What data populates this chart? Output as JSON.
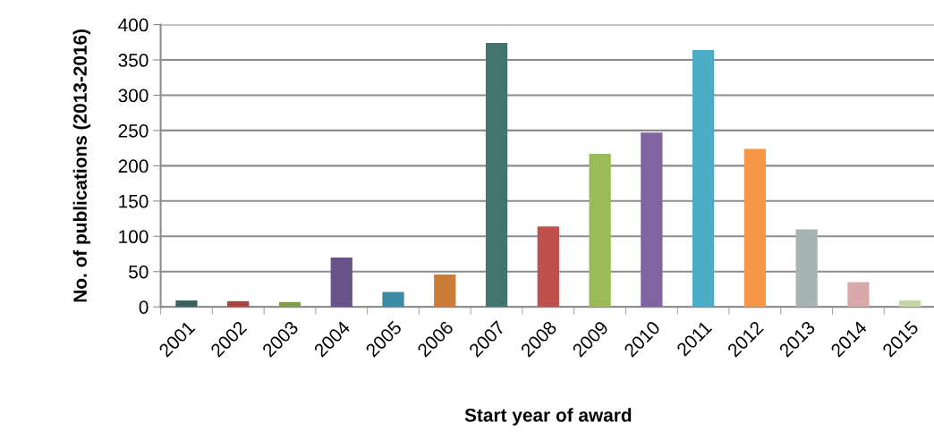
{
  "chart_data": {
    "type": "bar",
    "xlabel": "Start year of award",
    "ylabel": "No. of publications (2013-2016)",
    "categories": [
      "2001",
      "2002",
      "2003",
      "2004",
      "2005",
      "2006",
      "2007",
      "2008",
      "2009",
      "2010",
      "2011",
      "2012",
      "2013",
      "2014",
      "2015"
    ],
    "values": [
      9,
      8,
      7,
      70,
      21,
      46,
      374,
      114,
      217,
      247,
      364,
      224,
      110,
      35,
      9
    ],
    "colors": [
      "#376260",
      "#a94442",
      "#7f9c47",
      "#68528a",
      "#3a8ba3",
      "#cc7b39",
      "#437570",
      "#c0504d",
      "#9bbb59",
      "#8064a2",
      "#4bacc6",
      "#f79646",
      "#a7b4b4",
      "#d9a9a9",
      "#c4d6a6"
    ],
    "ylim": [
      0,
      400
    ],
    "yticks": [
      0,
      50,
      100,
      150,
      200,
      250,
      300,
      350,
      400
    ],
    "grid": "y"
  }
}
